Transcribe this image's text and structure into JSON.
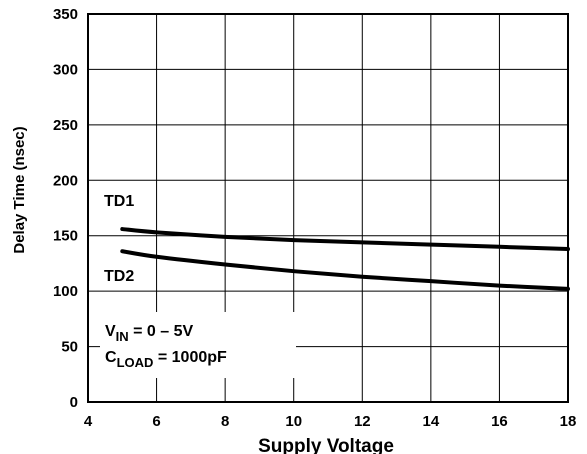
{
  "chart_data": {
    "type": "line",
    "title": "",
    "xlabel": "Supply Voltage",
    "ylabel": "Delay Time (nsec)",
    "xlim": [
      4,
      18
    ],
    "ylim": [
      0,
      350
    ],
    "x_ticks": [
      4,
      6,
      8,
      10,
      12,
      14,
      16,
      18
    ],
    "y_ticks": [
      0,
      50,
      100,
      150,
      200,
      250,
      300,
      350
    ],
    "grid": true,
    "series": [
      {
        "name": "TD1",
        "x": [
          5,
          6,
          8,
          10,
          12,
          14,
          16,
          18
        ],
        "y": [
          156,
          153,
          149,
          146,
          144,
          142,
          140,
          138
        ]
      },
      {
        "name": "TD2",
        "x": [
          5,
          6,
          8,
          10,
          12,
          14,
          16,
          18
        ],
        "y": [
          136,
          131,
          124,
          118,
          113,
          109,
          105,
          102
        ]
      }
    ],
    "annotations": [
      {
        "main": "V",
        "sub": "IN",
        "rest": " = 0 – 5V"
      },
      {
        "main": "C",
        "sub": "LOAD",
        "rest": " = 1000pF"
      }
    ]
  }
}
